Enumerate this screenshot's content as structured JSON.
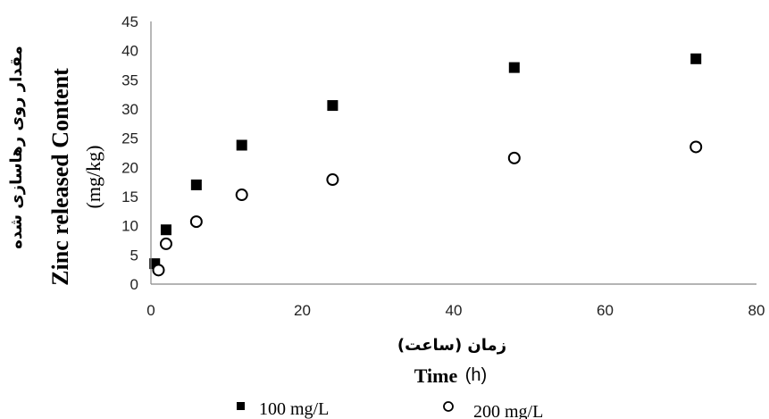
{
  "chart_data": {
    "type": "scatter",
    "ylabel_fa": "مقدار روی رهاسازی شده",
    "ylabel_en": "Zinc released Content",
    "ylabel_unit": "(mg/kg)",
    "xlabel_fa": "زمان (ساعت)",
    "xlabel_en": "Time",
    "xlabel_unit": "(h)",
    "xlim": [
      0,
      80
    ],
    "ylim": [
      0,
      45
    ],
    "xticks": [
      "0",
      "20",
      "40",
      "60",
      "80"
    ],
    "yticks": [
      "0",
      "5",
      "10",
      "15",
      "20",
      "25",
      "30",
      "35",
      "40",
      "45"
    ],
    "legend_position": "bottom",
    "series": [
      {
        "name": "100 mg/L",
        "marker": "filled-square",
        "color": "#000000",
        "x": [
          0.5,
          2,
          6,
          12,
          24,
          48,
          72
        ],
        "y": [
          3.5,
          9.3,
          17.0,
          23.8,
          30.6,
          37.1,
          38.6
        ]
      },
      {
        "name": "200 mg/L",
        "marker": "open-circle",
        "color": "#000000",
        "x": [
          1,
          2,
          6,
          12,
          24,
          48,
          72
        ],
        "y": [
          2.4,
          6.9,
          10.7,
          15.3,
          17.9,
          21.6,
          23.5
        ]
      }
    ]
  }
}
